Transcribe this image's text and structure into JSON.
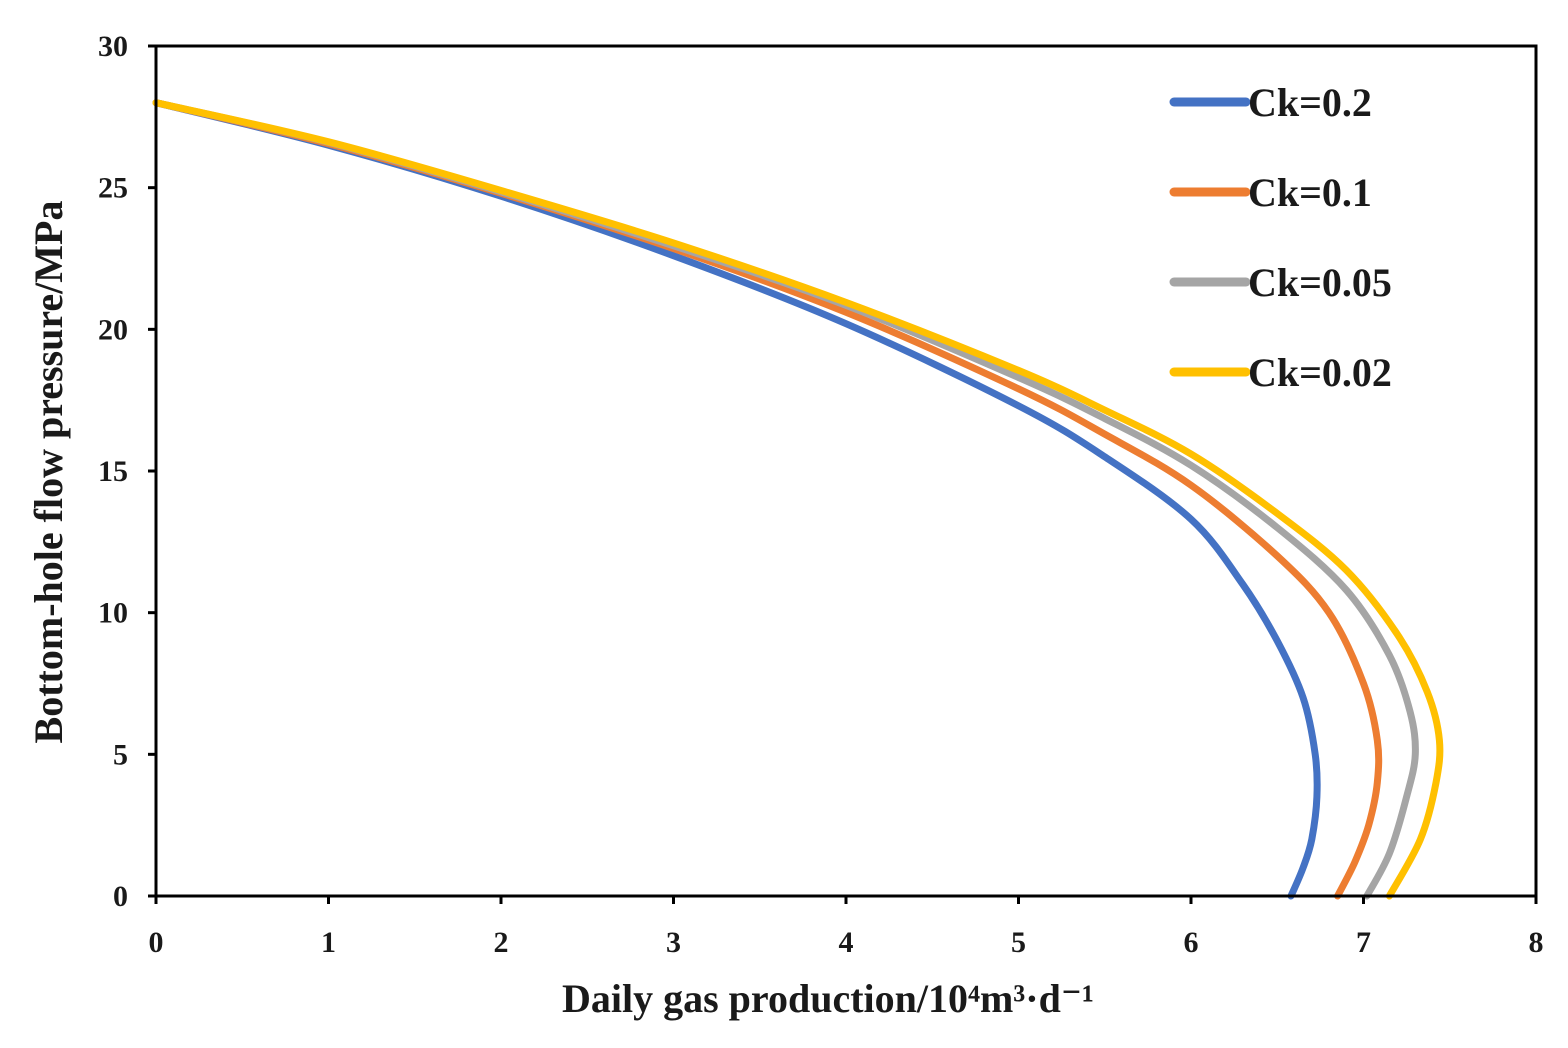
{
  "chart_data": {
    "type": "line",
    "title": "",
    "xlabel": "Daily gas production/10⁴m³·d⁻¹",
    "ylabel": "Bottom-hole flow pressure/MPa",
    "xlim": [
      0,
      8
    ],
    "ylim": [
      0,
      30
    ],
    "xticks": [
      "0",
      "1",
      "2",
      "3",
      "4",
      "5",
      "6",
      "7",
      "8"
    ],
    "yticks": [
      "0",
      "5",
      "10",
      "15",
      "20",
      "25",
      "30"
    ],
    "grid": false,
    "legend_position": "top-right",
    "series": [
      {
        "name": "Ck=0.2",
        "color": "#4472C4",
        "points": [
          [
            0,
            28.0
          ],
          [
            1,
            26.5
          ],
          [
            2,
            24.7
          ],
          [
            3,
            22.6
          ],
          [
            4,
            20.2
          ],
          [
            5,
            17.3
          ],
          [
            5.5,
            15.5
          ],
          [
            6,
            13.3
          ],
          [
            6.3,
            11.0
          ],
          [
            6.5,
            9.0
          ],
          [
            6.65,
            7.0
          ],
          [
            6.72,
            5.0
          ],
          [
            6.73,
            3.5
          ],
          [
            6.7,
            2.0
          ],
          [
            6.65,
            1.0
          ],
          [
            6.58,
            0
          ]
        ]
      },
      {
        "name": "Ck=0.1",
        "color": "#ED7D31",
        "points": [
          [
            0,
            28.0
          ],
          [
            1,
            26.55
          ],
          [
            2,
            24.8
          ],
          [
            3,
            22.85
          ],
          [
            4,
            20.6
          ],
          [
            5,
            17.9
          ],
          [
            5.5,
            16.3
          ],
          [
            6,
            14.5
          ],
          [
            6.5,
            12.0
          ],
          [
            6.8,
            10.0
          ],
          [
            7.0,
            7.5
          ],
          [
            7.08,
            5.5
          ],
          [
            7.08,
            4.0
          ],
          [
            7.03,
            2.5
          ],
          [
            6.95,
            1.2
          ],
          [
            6.85,
            0
          ]
        ]
      },
      {
        "name": "Ck=0.05",
        "color": "#A5A5A5",
        "points": [
          [
            0,
            28.0
          ],
          [
            1,
            26.6
          ],
          [
            2,
            24.85
          ],
          [
            3,
            22.95
          ],
          [
            4,
            20.85
          ],
          [
            5,
            18.3
          ],
          [
            5.5,
            16.85
          ],
          [
            6,
            15.2
          ],
          [
            6.5,
            13.0
          ],
          [
            6.9,
            10.8
          ],
          [
            7.15,
            8.5
          ],
          [
            7.27,
            6.5
          ],
          [
            7.3,
            5.0
          ],
          [
            7.25,
            3.5
          ],
          [
            7.15,
            1.5
          ],
          [
            7.02,
            0
          ]
        ]
      },
      {
        "name": "Ck=0.02",
        "color": "#FFC000",
        "points": [
          [
            0,
            28.0
          ],
          [
            1,
            26.62
          ],
          [
            2,
            24.9
          ],
          [
            3,
            23.05
          ],
          [
            4,
            20.95
          ],
          [
            5,
            18.55
          ],
          [
            5.5,
            17.15
          ],
          [
            6,
            15.6
          ],
          [
            6.5,
            13.5
          ],
          [
            6.9,
            11.5
          ],
          [
            7.2,
            9.2
          ],
          [
            7.37,
            7.2
          ],
          [
            7.44,
            5.5
          ],
          [
            7.42,
            4.0
          ],
          [
            7.33,
            2.0
          ],
          [
            7.15,
            0
          ]
        ]
      }
    ]
  }
}
